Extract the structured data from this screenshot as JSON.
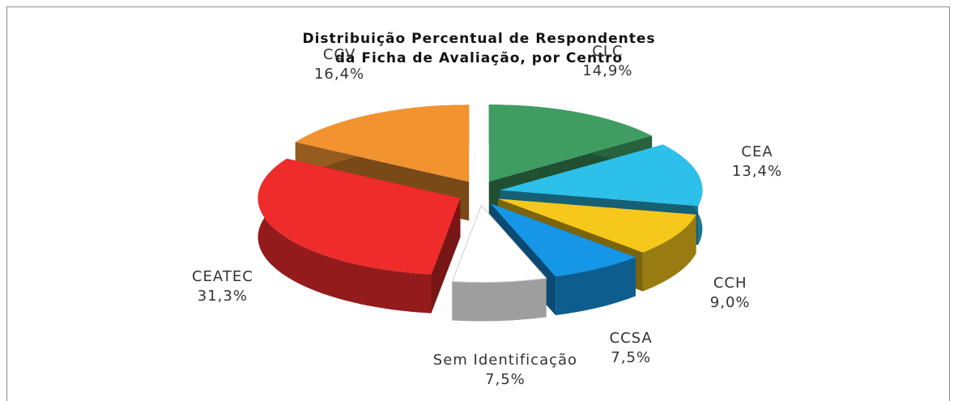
{
  "chart_data": {
    "type": "pie3d",
    "title": [
      "Distribuição Percentual de Respondentes",
      "da Ficha de Avaliação, por Centro"
    ],
    "categories": [
      "CLC",
      "CEA",
      "CCH",
      "CCSA",
      "Sem Identificação",
      "CEATEC",
      "CCV"
    ],
    "values": [
      14.9,
      13.4,
      9.0,
      7.5,
      7.5,
      31.3,
      16.4
    ],
    "value_labels": [
      "14,9%",
      "13,4%",
      "9,0%",
      "7,5%",
      "7,5%",
      "31,3%",
      "16,4%"
    ],
    "colors": [
      "#3f9d62",
      "#2cc0ea",
      "#f7c81c",
      "#1596e6",
      "#ffffff",
      "#ef2b2b",
      "#f29330"
    ]
  }
}
